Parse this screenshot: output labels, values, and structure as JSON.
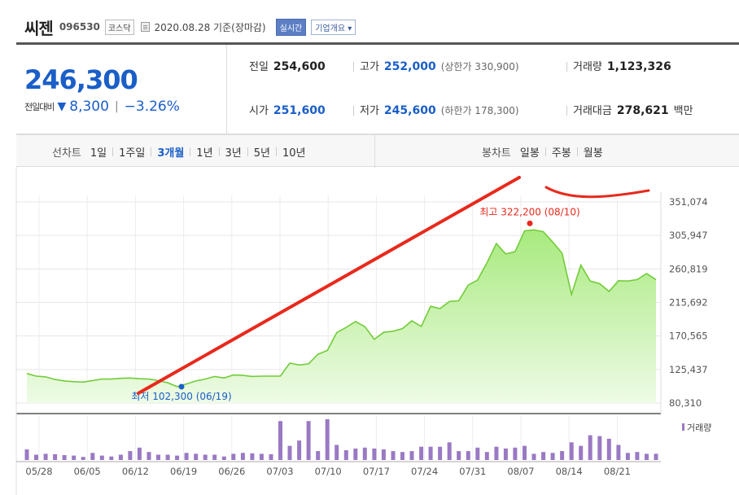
{
  "header": {
    "name": "씨젠",
    "code": "096530",
    "market": "코스닥",
    "date": "2020.08.28 기준(장마감)",
    "realtime_btn": "실시간",
    "corp_btn": "기업개요 ▾"
  },
  "price": {
    "current": "246,300",
    "change_label": "전일대비",
    "change_arrow": "▼",
    "change_value": "8,300",
    "change_pct": "−3.26%"
  },
  "stats": {
    "prev_label": "전일",
    "prev": "254,600",
    "high_label": "고가",
    "high": "252,000",
    "upper_limit": "(상한가 330,900)",
    "volume_label": "거래량",
    "volume": "1,123,326",
    "open_label": "시가",
    "open": "251,600",
    "low_label": "저가",
    "low": "245,600",
    "lower_limit": "(하한가 178,300)",
    "amount_label": "거래대금",
    "amount": "278,621",
    "amount_unit": "백만"
  },
  "toolbar": {
    "line_label": "선차트",
    "periods": [
      "1일",
      "1주일",
      "3개월",
      "1년",
      "3년",
      "5년",
      "10년"
    ],
    "active_period": "3개월",
    "candle_label": "봉차트",
    "candles": [
      "일봉",
      "주봉",
      "월봉"
    ]
  },
  "chart_data": {
    "type": "area",
    "ylim": [
      80310,
      351074
    ],
    "yticks": [
      "351,074",
      "305,947",
      "260,819",
      "215,692",
      "170,565",
      "125,437",
      "80,310"
    ],
    "xticks": [
      "05/28",
      "06/05",
      "06/12",
      "06/19",
      "06/26",
      "07/03",
      "07/10",
      "07/17",
      "07/24",
      "07/31",
      "08/07",
      "08/14",
      "08/21"
    ],
    "values": [
      120000,
      116500,
      115500,
      112000,
      110000,
      109000,
      108500,
      110500,
      112500,
      112500,
      113500,
      114000,
      113000,
      112500,
      110500,
      107500,
      102300,
      106000,
      110000,
      112500,
      116000,
      114000,
      118000,
      117500,
      116000,
      116500,
      116500,
      116500,
      134000,
      131500,
      133000,
      146000,
      151000,
      175000,
      182000,
      190000,
      183000,
      166000,
      175500,
      177000,
      180500,
      191000,
      183500,
      210500,
      207500,
      217000,
      218000,
      239000,
      246000,
      269000,
      295000,
      281000,
      284000,
      312000,
      313500,
      311000,
      297000,
      282000,
      226500,
      266000,
      244500,
      241000,
      230500,
      245000,
      244500,
      246500,
      254600,
      246300
    ],
    "volume": [
      120,
      60,
      70,
      65,
      55,
      50,
      35,
      80,
      50,
      40,
      60,
      100,
      140,
      90,
      60,
      60,
      50,
      80,
      70,
      60,
      60,
      40,
      70,
      80,
      75,
      70,
      65,
      440,
      160,
      220,
      440,
      100,
      460,
      170,
      110,
      130,
      140,
      130,
      120,
      100,
      90,
      100,
      150,
      150,
      150,
      200,
      100,
      100,
      140,
      90,
      150,
      130,
      140,
      160,
      70,
      90,
      80,
      100,
      200,
      160,
      280,
      270,
      240,
      170,
      80,
      90,
      70,
      70
    ],
    "high_marker": {
      "label": "최고 322,200 (08/10)",
      "value": 322200
    },
    "low_marker": {
      "label": "최저 102,300 (06/19)",
      "value": 102300
    },
    "volume_legend": "거래량"
  }
}
